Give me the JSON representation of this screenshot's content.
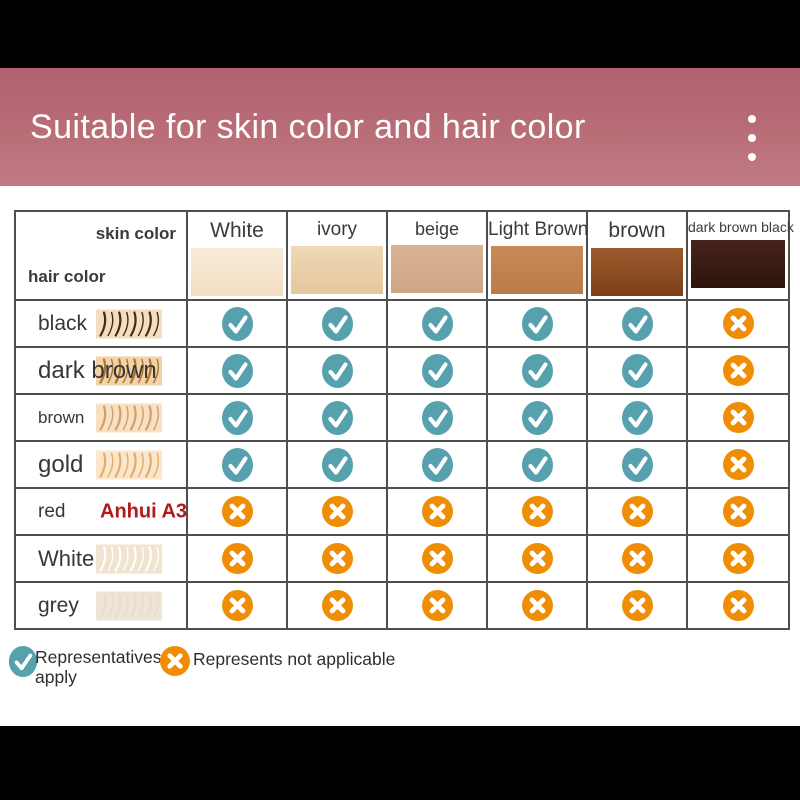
{
  "banner": {
    "title": "Suitable for skin color and hair color",
    "background": "#b96d77",
    "text_color": "#ffffff",
    "menu_icon": "kebab-menu-icon"
  },
  "chart_data": {
    "type": "table",
    "title": "Suitable for skin color and hair color",
    "columns": [
      "White",
      "ivory",
      "beige",
      "Light Brown",
      "brown",
      "dark brown black"
    ],
    "rows": [
      "black",
      "dark brown",
      "brown",
      "gold",
      "red",
      "White",
      "grey"
    ],
    "values": [
      [
        "yes",
        "yes",
        "yes",
        "yes",
        "yes",
        "no"
      ],
      [
        "yes",
        "yes",
        "yes",
        "yes",
        "yes",
        "no"
      ],
      [
        "yes",
        "yes",
        "yes",
        "yes",
        "yes",
        "no"
      ],
      [
        "yes",
        "yes",
        "yes",
        "yes",
        "yes",
        "no"
      ],
      [
        "no",
        "no",
        "no",
        "no",
        "no",
        "no"
      ],
      [
        "no",
        "no",
        "no",
        "no",
        "no",
        "no"
      ],
      [
        "no",
        "no",
        "no",
        "no",
        "no",
        "no"
      ]
    ],
    "legend": {
      "yes": "Representatives apply",
      "no": "Represents not applicable"
    }
  },
  "table": {
    "border_color": "#4f4f4f",
    "corner": {
      "top_label": "skin color",
      "bottom_label": "hair color"
    },
    "columns": [
      {
        "label": "White",
        "label_size": 21,
        "swatch_top": "#f9ecdb",
        "swatch_bottom": "#f3ddc0"
      },
      {
        "label": "ivory",
        "label_size": 19,
        "swatch_top": "#eed8b6",
        "swatch_bottom": "#e5c79b"
      },
      {
        "label": "beige",
        "label_size": 18,
        "swatch_top": "#d8b494",
        "swatch_bottom": "#cda684"
      },
      {
        "label": "Light Brown",
        "label_size": 19,
        "swatch_top": "#c88a59",
        "swatch_bottom": "#bb7a49"
      },
      {
        "label": "brown",
        "label_size": 21,
        "swatch_top": "#9d5c2f",
        "swatch_bottom": "#7c3f17"
      },
      {
        "label": "dark brown black",
        "label_size": 14,
        "swatch_top": "#46241b",
        "swatch_bottom": "#2c140b"
      }
    ],
    "rows": [
      {
        "label": "black",
        "label_size": 21,
        "hair": {
          "bg": "#f5ddbf",
          "strand": "#3f2d18"
        }
      },
      {
        "label": "dark brown",
        "label_size": 24,
        "hair": {
          "bg": "#f2d2a9",
          "strand": "#aa752f"
        }
      },
      {
        "label": "brown",
        "label_size": 17,
        "hair": {
          "bg": "#f7e0c3",
          "strand": "#d69d64"
        }
      },
      {
        "label": "gold",
        "label_size": 24,
        "hair": {
          "bg": "#f9e6cb",
          "strand": "#e7ab66"
        }
      },
      {
        "label": "red",
        "label_size": 19,
        "watermark": {
          "text": "Anhui A3",
          "color": "#b3191c"
        }
      },
      {
        "label": "White",
        "label_size": 22,
        "hair": {
          "bg": "#f0e3d0",
          "strand": "#ffffff"
        }
      },
      {
        "label": "grey",
        "label_size": 21,
        "hair": {
          "bg": "#f0e4d4",
          "strand": "#e3ded2"
        }
      }
    ]
  },
  "marks": {
    "yes_color": "#56a1ad",
    "no_color": "#ef8e05"
  },
  "legend": {
    "items": [
      {
        "icon": "check-icon",
        "label": "Representatives apply"
      },
      {
        "icon": "cross-icon",
        "label": "Represents not applicable"
      }
    ]
  }
}
